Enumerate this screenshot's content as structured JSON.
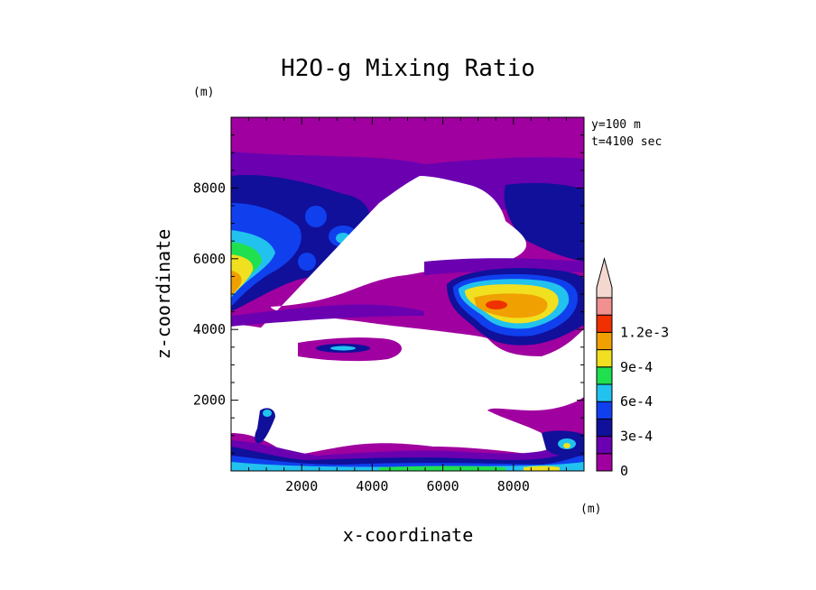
{
  "chart_data": {
    "type": "heatmap",
    "title": "H2O-g Mixing Ratio",
    "xlabel": "x-coordinate",
    "ylabel": "z-coordinate",
    "x_unit": "(m)",
    "y_unit": "(m)",
    "annotations": [
      "y=100 m",
      "t=4100 sec"
    ],
    "xlim": [
      0,
      10000
    ],
    "ylim": [
      0,
      10000
    ],
    "x_ticks": [
      2000,
      4000,
      6000,
      8000
    ],
    "y_ticks": [
      2000,
      4000,
      6000,
      8000
    ],
    "x_tick_labels": [
      "2000",
      "4000",
      "6000",
      "8000"
    ],
    "y_tick_labels": [
      "2000",
      "4000",
      "6000",
      "8000"
    ],
    "colorbar": {
      "levels": [
        0,
        0.00015,
        0.0003,
        0.00045,
        0.0006,
        0.00075,
        0.0009,
        0.00105,
        0.0012,
        0.00135
      ],
      "colors": [
        "#a0009f",
        "#6a00b0",
        "#10109a",
        "#1040ee",
        "#22c2ee",
        "#20e050",
        "#f0e020",
        "#f0a000",
        "#f03000",
        "#f09090",
        "#f4d8d0"
      ],
      "labels": [
        "0",
        "3e-4",
        "6e-4",
        "9e-4",
        "1.2e-3"
      ],
      "label_values": [
        0,
        0.0003,
        0.0006,
        0.0009,
        0.0012
      ],
      "extend": "max"
    },
    "features": [
      {
        "x": 300,
        "z": 5200,
        "value": 0.00085
      },
      {
        "x": 800,
        "z": 6300,
        "value": 0.0005
      },
      {
        "x": 2600,
        "z": 6900,
        "value": 0.0004
      },
      {
        "x": 3200,
        "z": 6500,
        "value": 0.00045
      },
      {
        "x": 3200,
        "z": 3500,
        "value": 0.0004
      },
      {
        "x": 7600,
        "z": 4700,
        "value": 0.0009
      },
      {
        "x": 8200,
        "z": 4400,
        "value": 0.00075
      },
      {
        "x": 1100,
        "z": 1600,
        "value": 0.0003
      },
      {
        "x": 9100,
        "z": 700,
        "value": 0.0006
      },
      {
        "x": 5000,
        "z": 150,
        "value": 0.0005
      }
    ]
  }
}
